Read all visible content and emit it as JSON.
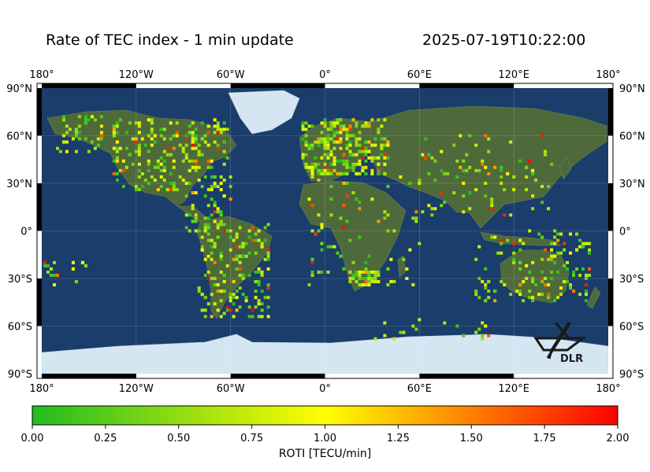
{
  "title": "Rate of TEC index - 1 min update",
  "timestamp": "2025-07-19T10:22:00",
  "map": {
    "lon_ticks": [
      "180°",
      "120°W",
      "60°W",
      "0°",
      "60°E",
      "120°E",
      "180°"
    ],
    "lat_ticks": [
      "90°N",
      "60°N",
      "30°N",
      "0°",
      "30°S",
      "60°S",
      "90°S"
    ],
    "logo_text": "DLR",
    "colors": {
      "ocean": "#1a3d6b",
      "land": "#4f6a3a",
      "ice": "#d4e6f2"
    }
  },
  "colorbar": {
    "ticks": [
      "0.00",
      "0.25",
      "0.50",
      "0.75",
      "1.00",
      "1.25",
      "1.50",
      "1.75",
      "2.00"
    ],
    "label": "ROTI [TECU/min]",
    "colors": [
      "#22bb22",
      "#ffff00",
      "#ff0000"
    ]
  }
}
